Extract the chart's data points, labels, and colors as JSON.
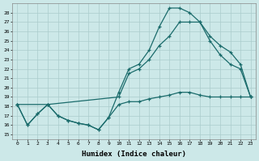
{
  "xlabel": "Humidex (Indice chaleur)",
  "bg_color": "#cce8e8",
  "grid_color": "#aacccc",
  "line_color": "#1a6b6b",
  "xlim": [
    -0.5,
    23.5
  ],
  "ylim": [
    14.5,
    29.0
  ],
  "yticks": [
    15,
    16,
    17,
    18,
    19,
    20,
    21,
    22,
    23,
    24,
    25,
    26,
    27,
    28
  ],
  "xticks": [
    0,
    1,
    2,
    3,
    4,
    5,
    6,
    7,
    8,
    9,
    10,
    11,
    12,
    13,
    14,
    15,
    16,
    17,
    18,
    19,
    20,
    21,
    22,
    23
  ],
  "line1_x": [
    0,
    1,
    2,
    3,
    4,
    5,
    6,
    7,
    8,
    9,
    10,
    11,
    12,
    13,
    14,
    15,
    16,
    17,
    18,
    19,
    20,
    21,
    22,
    23
  ],
  "line1_y": [
    18.2,
    16.0,
    17.2,
    18.2,
    17.0,
    16.5,
    16.2,
    16.0,
    15.5,
    16.8,
    19.5,
    22.0,
    22.5,
    24.0,
    26.5,
    28.5,
    28.5,
    28.0,
    27.0,
    25.5,
    24.5,
    23.8,
    22.5,
    19.0
  ],
  "line2_x": [
    0,
    3,
    10,
    11,
    12,
    13,
    14,
    15,
    16,
    17,
    18,
    19,
    20,
    21,
    22,
    23
  ],
  "line2_y": [
    18.2,
    18.2,
    19.0,
    21.5,
    22.0,
    23.0,
    24.5,
    25.5,
    27.0,
    27.0,
    27.0,
    25.0,
    23.5,
    22.5,
    22.0,
    19.0
  ],
  "line3_x": [
    0,
    1,
    2,
    3,
    4,
    5,
    6,
    7,
    8,
    9,
    10,
    11,
    12,
    13,
    14,
    15,
    16,
    17,
    18,
    19,
    20,
    21,
    22,
    23
  ],
  "line3_y": [
    18.2,
    16.0,
    17.2,
    18.2,
    17.0,
    16.5,
    16.2,
    16.0,
    15.5,
    16.8,
    18.2,
    18.5,
    18.5,
    18.8,
    19.0,
    19.2,
    19.5,
    19.5,
    19.2,
    19.0,
    19.0,
    19.0,
    19.0,
    19.0
  ]
}
